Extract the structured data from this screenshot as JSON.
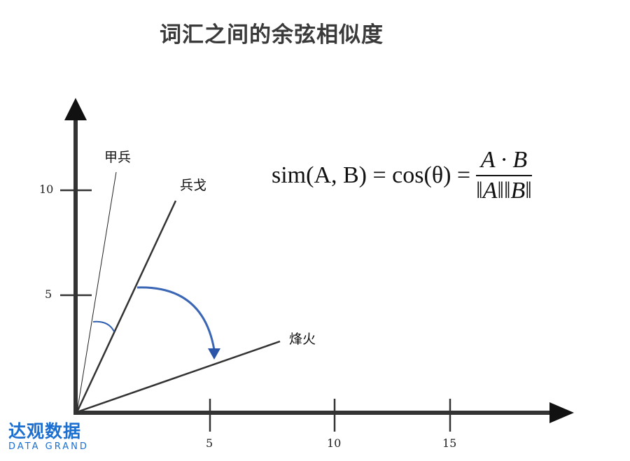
{
  "title": "词汇之间的余弦相似度",
  "vectors": [
    {
      "label": "甲兵"
    },
    {
      "label": "兵戈"
    },
    {
      "label": "烽火"
    }
  ],
  "axes": {
    "x_ticks": [
      "5",
      "10",
      "15"
    ],
    "y_ticks": [
      "10",
      "5"
    ]
  },
  "formula": {
    "lhs": "sim(A, B) = cos(θ) =",
    "numerator": "A · B",
    "denominator": "‖A‖‖B‖"
  },
  "logo": {
    "cn": "达观数据",
    "en": "DATA GRAND",
    "color": "#1a6fd0"
  },
  "colors": {
    "axis": "#222222",
    "arc": "#2f5fb0"
  }
}
